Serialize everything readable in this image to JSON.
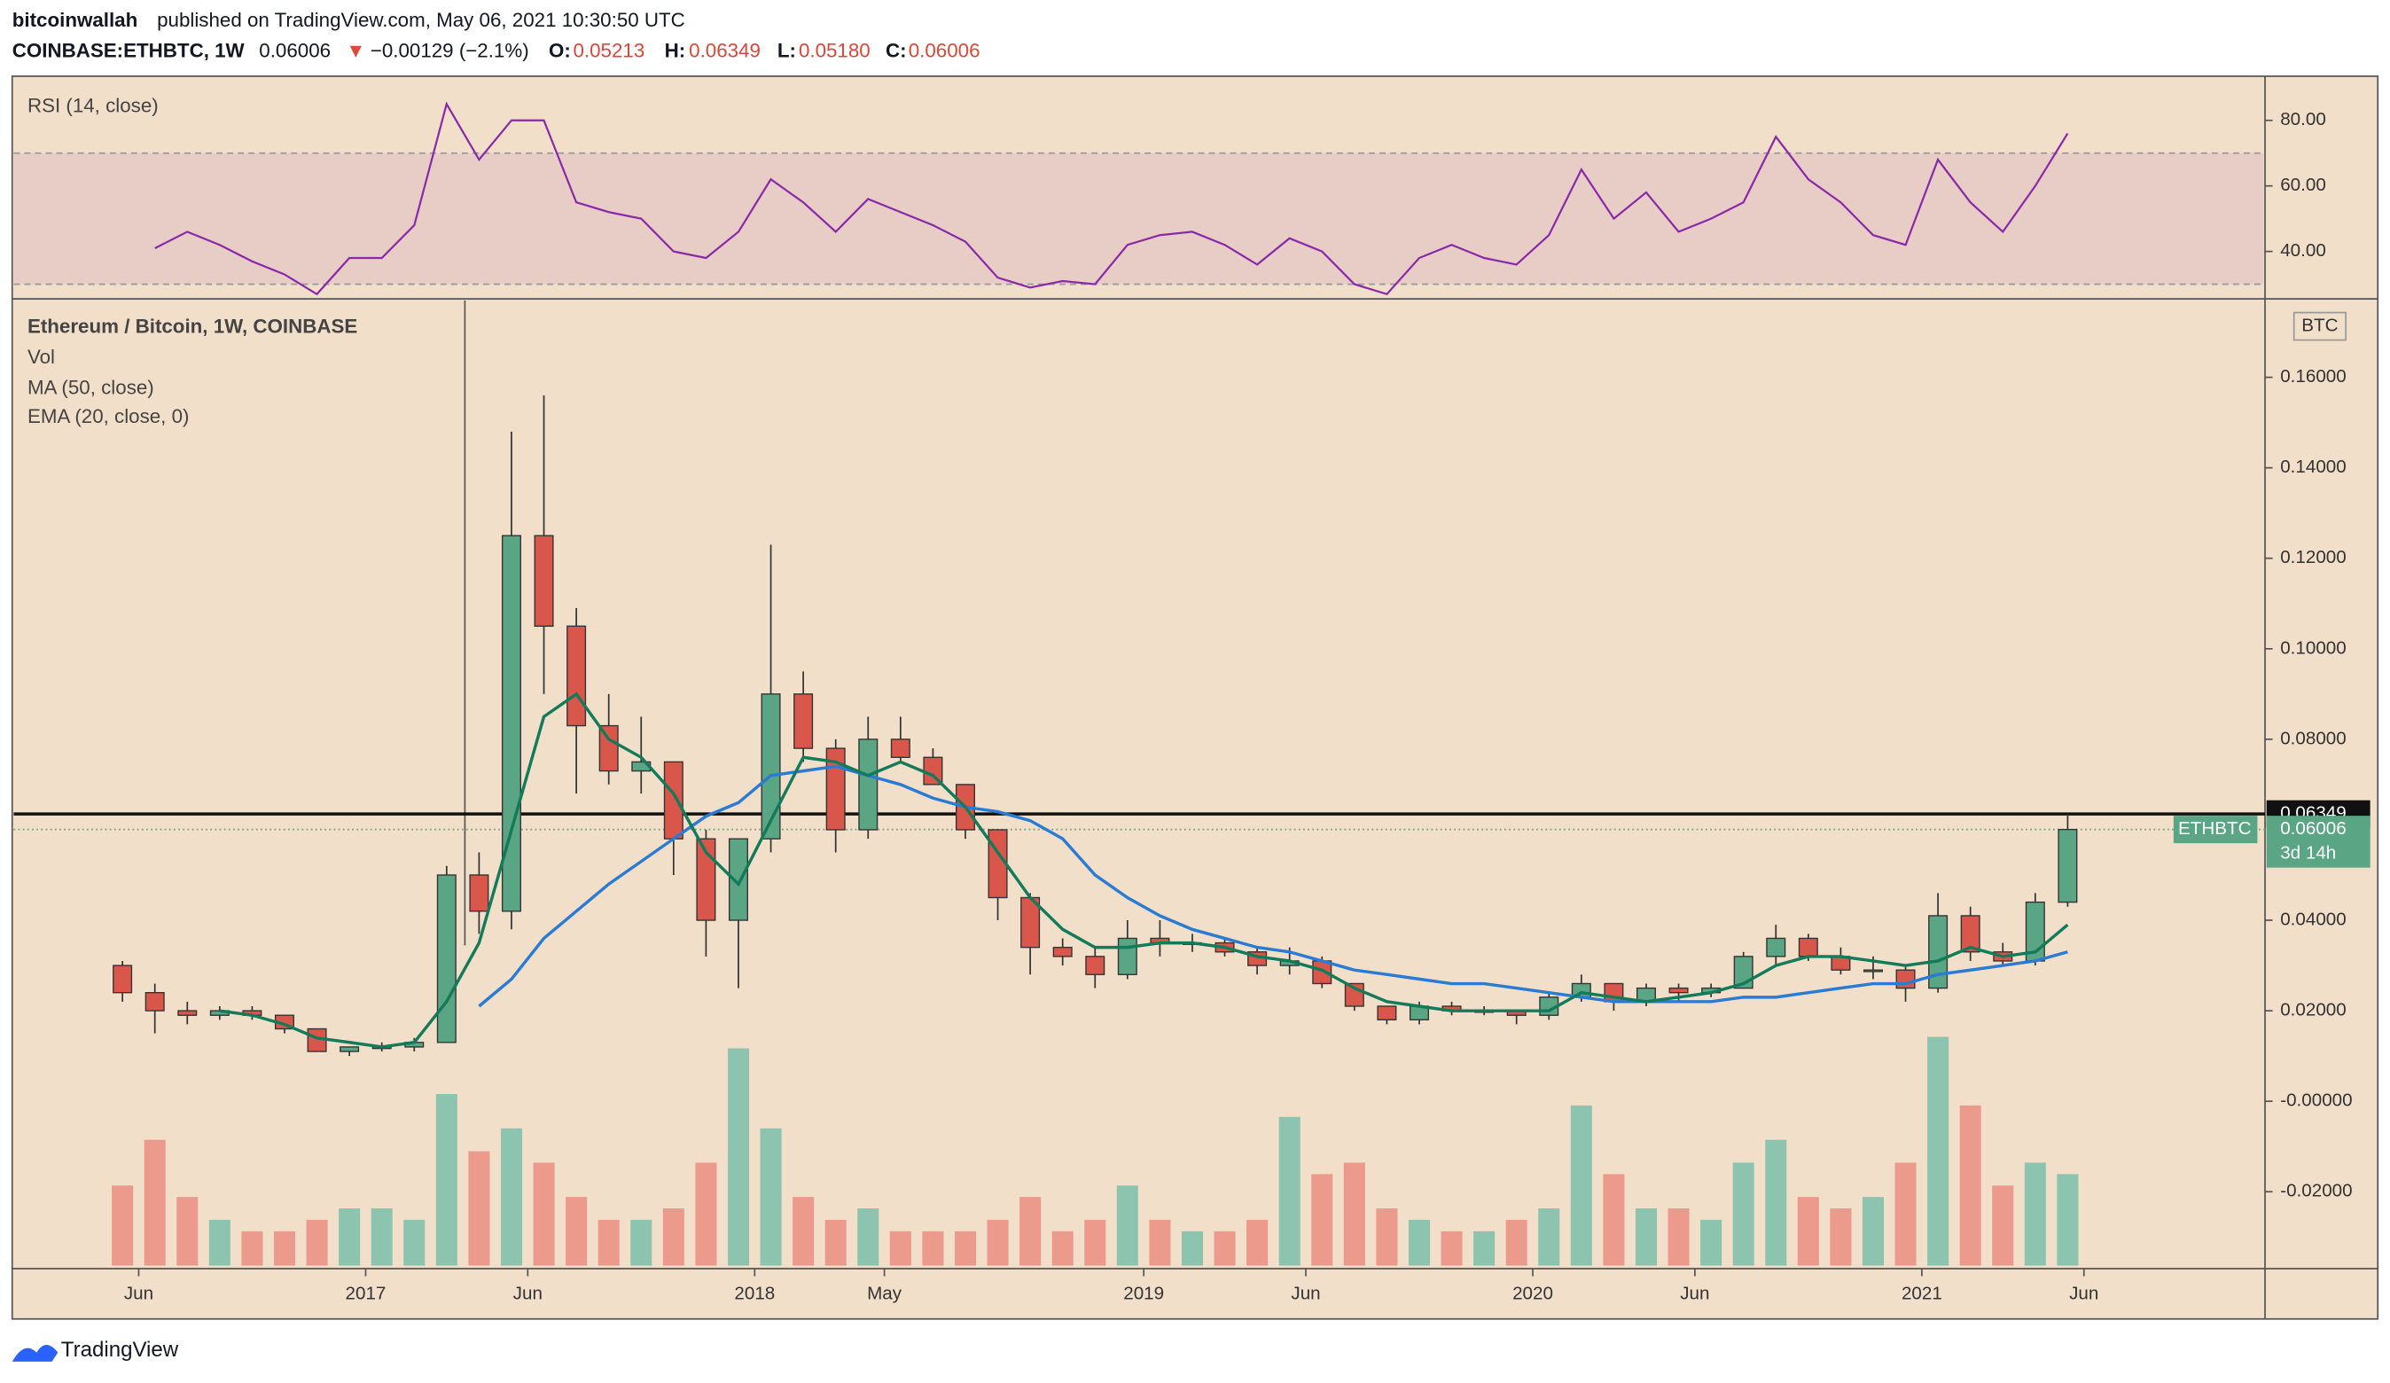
{
  "header": {
    "author": "bitcoinwallah",
    "published": "published on TradingView.com, May 06, 2021 10:30:50 UTC",
    "symbol": "COINBASE:ETHBTC, 1W",
    "last": "0.06006",
    "arrow": "▼",
    "change": "−0.00129 (−2.1%)",
    "open_label": "O:",
    "open": "0.05213",
    "high_label": "H:",
    "high": "0.06349",
    "low_label": "L:",
    "low": "0.05180",
    "close_label": "C:",
    "close": "0.06006"
  },
  "footer": {
    "brand": "TradingView"
  },
  "chart_data": {
    "type": "candlestick",
    "title": "Ethereum / Bitcoin, 1W, COINBASE",
    "unit": "BTC",
    "x": [
      "2016-05",
      "2016-06",
      "2016-07",
      "2016-08",
      "2016-09",
      "2016-10",
      "2016-11",
      "2016-12",
      "2017-01",
      "2017-02",
      "2017-03",
      "2017-04",
      "2017-05",
      "2017-06",
      "2017-07",
      "2017-08",
      "2017-09",
      "2017-10",
      "2017-11",
      "2017-12",
      "2018-01",
      "2018-02",
      "2018-03",
      "2018-04",
      "2018-05",
      "2018-06",
      "2018-07",
      "2018-08",
      "2018-09",
      "2018-10",
      "2018-11",
      "2018-12",
      "2019-01",
      "2019-02",
      "2019-03",
      "2019-04",
      "2019-05",
      "2019-06",
      "2019-07",
      "2019-08",
      "2019-09",
      "2019-10",
      "2019-11",
      "2019-12",
      "2020-01",
      "2020-02",
      "2020-03",
      "2020-04",
      "2020-05",
      "2020-06",
      "2020-07",
      "2020-08",
      "2020-09",
      "2020-10",
      "2020-11",
      "2020-12",
      "2021-01",
      "2021-02",
      "2021-03",
      "2021-04",
      "2021-05"
    ],
    "open": [
      0.03,
      0.024,
      0.02,
      0.019,
      0.02,
      0.019,
      0.016,
      0.011,
      0.012,
      0.012,
      0.013,
      0.05,
      0.042,
      0.125,
      0.105,
      0.083,
      0.073,
      0.075,
      0.058,
      0.04,
      0.058,
      0.09,
      0.078,
      0.06,
      0.08,
      0.076,
      0.07,
      0.06,
      0.045,
      0.034,
      0.032,
      0.028,
      0.036,
      0.035,
      0.035,
      0.033,
      0.03,
      0.031,
      0.026,
      0.021,
      0.018,
      0.021,
      0.02,
      0.02,
      0.019,
      0.023,
      0.026,
      0.022,
      0.025,
      0.024,
      0.025,
      0.032,
      0.036,
      0.032,
      0.029,
      0.029,
      0.025,
      0.041,
      0.033,
      0.031,
      0.044
    ],
    "high": [
      0.031,
      0.026,
      0.022,
      0.021,
      0.021,
      0.019,
      0.016,
      0.012,
      0.013,
      0.014,
      0.052,
      0.055,
      0.148,
      0.156,
      0.109,
      0.09,
      0.085,
      0.075,
      0.06,
      0.058,
      0.123,
      0.095,
      0.08,
      0.085,
      0.085,
      0.078,
      0.07,
      0.06,
      0.046,
      0.036,
      0.034,
      0.04,
      0.04,
      0.037,
      0.036,
      0.034,
      0.034,
      0.032,
      0.026,
      0.021,
      0.022,
      0.022,
      0.021,
      0.02,
      0.024,
      0.028,
      0.026,
      0.026,
      0.026,
      0.026,
      0.033,
      0.039,
      0.037,
      0.034,
      0.032,
      0.03,
      0.046,
      0.043,
      0.035,
      0.046,
      0.06349
    ],
    "low": [
      0.022,
      0.015,
      0.017,
      0.018,
      0.018,
      0.015,
      0.011,
      0.01,
      0.011,
      0.011,
      0.013,
      0.037,
      0.038,
      0.09,
      0.068,
      0.07,
      0.068,
      0.05,
      0.032,
      0.025,
      0.055,
      0.075,
      0.055,
      0.058,
      0.075,
      0.07,
      0.058,
      0.04,
      0.028,
      0.03,
      0.025,
      0.027,
      0.032,
      0.033,
      0.032,
      0.028,
      0.028,
      0.025,
      0.02,
      0.017,
      0.017,
      0.019,
      0.019,
      0.017,
      0.018,
      0.022,
      0.02,
      0.021,
      0.022,
      0.023,
      0.025,
      0.03,
      0.031,
      0.028,
      0.027,
      0.022,
      0.024,
      0.031,
      0.03,
      0.03,
      0.043
    ],
    "close": [
      0.024,
      0.02,
      0.019,
      0.02,
      0.019,
      0.016,
      0.011,
      0.012,
      0.012,
      0.013,
      0.05,
      0.042,
      0.125,
      0.105,
      0.083,
      0.073,
      0.075,
      0.058,
      0.04,
      0.058,
      0.09,
      0.078,
      0.06,
      0.08,
      0.076,
      0.07,
      0.06,
      0.045,
      0.034,
      0.032,
      0.028,
      0.036,
      0.035,
      0.035,
      0.033,
      0.03,
      0.031,
      0.026,
      0.021,
      0.018,
      0.021,
      0.02,
      0.02,
      0.019,
      0.023,
      0.026,
      0.022,
      0.025,
      0.024,
      0.025,
      0.032,
      0.036,
      0.032,
      0.029,
      0.029,
      0.025,
      0.041,
      0.033,
      0.031,
      0.044,
      0.06006
    ],
    "up_color": "#5aa584",
    "down_color": "#d9574a",
    "ylim": [
      -0.037,
      0.177
    ],
    "yticks": [
      {
        "value": 0.16,
        "label": "0.16000"
      },
      {
        "value": 0.14,
        "label": "0.14000"
      },
      {
        "value": 0.12,
        "label": "0.12000"
      },
      {
        "value": 0.1,
        "label": "0.10000"
      },
      {
        "value": 0.08,
        "label": "0.08000"
      },
      {
        "value": 0.04,
        "label": "0.04000"
      },
      {
        "value": 0.02,
        "label": "0.02000"
      },
      {
        "value": 0,
        "label": "-0.00000"
      },
      {
        "value": -0.02,
        "label": "-0.02000"
      }
    ],
    "xticks": [
      {
        "value": "2016-06",
        "label": "Jun"
      },
      {
        "value": "2017-01",
        "label": "2017"
      },
      {
        "value": "2017-06",
        "label": "Jun"
      },
      {
        "value": "2018-01",
        "label": "2018"
      },
      {
        "value": "2018-05",
        "label": "May"
      },
      {
        "value": "2019-01",
        "label": "2019"
      },
      {
        "value": "2019-06",
        "label": "Jun"
      },
      {
        "value": "2020-01",
        "label": "2020"
      },
      {
        "value": "2020-06",
        "label": "Jun"
      },
      {
        "value": "2021-01",
        "label": "2021"
      },
      {
        "value": "2021-06",
        "label": "Jun"
      }
    ],
    "overlays": [
      {
        "name": "MA (50, close)",
        "color": "#2a7bd4",
        "values": [
          null,
          null,
          null,
          null,
          null,
          null,
          null,
          null,
          null,
          null,
          null,
          0.021,
          0.027,
          0.036,
          0.042,
          0.048,
          0.053,
          0.058,
          0.063,
          0.066,
          0.072,
          0.073,
          0.074,
          0.072,
          0.07,
          0.067,
          0.065,
          0.064,
          0.062,
          0.058,
          0.05,
          0.045,
          0.041,
          0.038,
          0.036,
          0.034,
          0.033,
          0.031,
          0.029,
          0.028,
          0.027,
          0.026,
          0.026,
          0.025,
          0.024,
          0.023,
          0.022,
          0.022,
          0.022,
          0.022,
          0.023,
          0.023,
          0.024,
          0.025,
          0.026,
          0.026,
          0.028,
          0.029,
          0.03,
          0.031,
          0.033
        ]
      },
      {
        "name": "EMA (20, close, 0)",
        "color": "#137a5a",
        "values": [
          null,
          null,
          null,
          0.02,
          0.019,
          0.017,
          0.014,
          0.013,
          0.012,
          0.013,
          0.022,
          0.035,
          0.06,
          0.085,
          0.09,
          0.08,
          0.076,
          0.068,
          0.055,
          0.048,
          0.062,
          0.076,
          0.075,
          0.072,
          0.075,
          0.072,
          0.065,
          0.055,
          0.045,
          0.038,
          0.034,
          0.034,
          0.035,
          0.035,
          0.034,
          0.032,
          0.031,
          0.029,
          0.025,
          0.022,
          0.021,
          0.02,
          0.02,
          0.02,
          0.02,
          0.024,
          0.023,
          0.022,
          0.023,
          0.024,
          0.026,
          0.03,
          0.032,
          0.032,
          0.031,
          0.03,
          0.031,
          0.034,
          0.032,
          0.033,
          0.039
        ]
      }
    ],
    "volume": {
      "name": "Vol",
      "up_color": "#8cc4b0",
      "down_color": "#ec9a8c",
      "y2lim": [
        0,
        100
      ],
      "values": [
        35,
        55,
        30,
        20,
        15,
        15,
        20,
        25,
        25,
        20,
        75,
        50,
        60,
        45,
        30,
        20,
        20,
        25,
        45,
        95,
        60,
        30,
        20,
        25,
        15,
        15,
        15,
        20,
        30,
        15,
        20,
        35,
        20,
        15,
        15,
        20,
        65,
        40,
        45,
        25,
        20,
        15,
        15,
        20,
        25,
        70,
        40,
        25,
        25,
        20,
        45,
        55,
        30,
        25,
        30,
        45,
        100,
        70,
        35,
        45,
        40
      ]
    },
    "rsi": {
      "name": "RSI (14, close)",
      "color": "#8a2aa8",
      "band": [
        30,
        70
      ],
      "ylim": [
        26,
        93
      ],
      "yticks": [
        {
          "value": 80,
          "label": "80.00"
        },
        {
          "value": 60,
          "label": "60.00"
        },
        {
          "value": 40,
          "label": "40.00"
        }
      ],
      "values": [
        null,
        41,
        46,
        42,
        37,
        33,
        27,
        38,
        38,
        48,
        85,
        68,
        80,
        80,
        55,
        52,
        50,
        40,
        38,
        46,
        62,
        55,
        46,
        56,
        52,
        48,
        43,
        32,
        29,
        31,
        30,
        42,
        45,
        46,
        42,
        36,
        44,
        40,
        30,
        27,
        38,
        42,
        38,
        36,
        45,
        65,
        50,
        58,
        46,
        50,
        55,
        75,
        62,
        55,
        45,
        42,
        68,
        55,
        46,
        60,
        76
      ]
    },
    "price_line": {
      "value": 0.06349
    },
    "last": {
      "symbol": "ETHBTC",
      "value": 0.06006,
      "countdown": "3d 14h"
    }
  }
}
